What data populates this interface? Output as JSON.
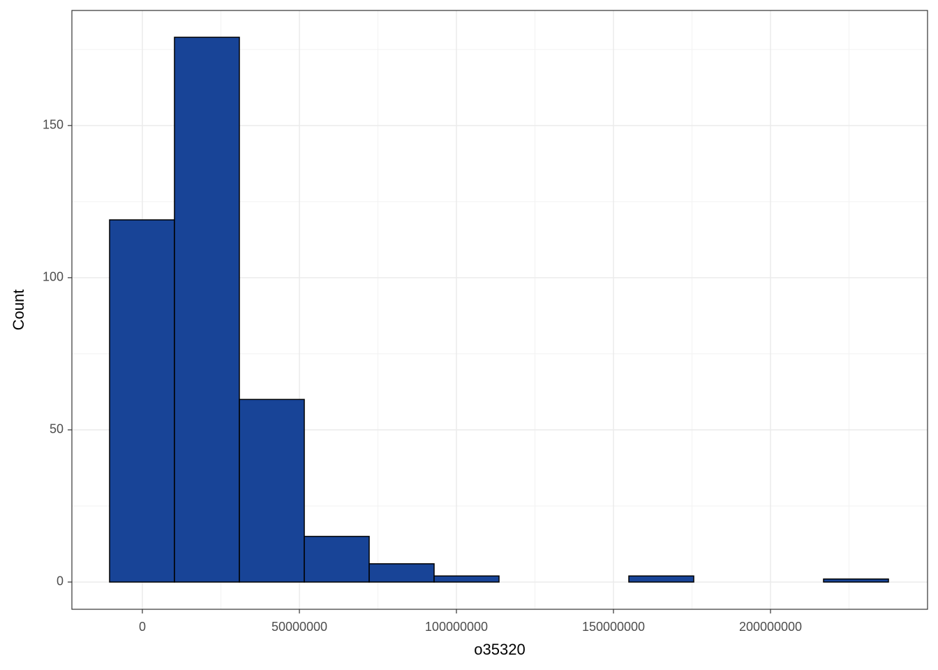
{
  "chart_data": {
    "type": "histogram",
    "x_label": "o35320",
    "y_label": "Count",
    "bins": [
      -10440000,
      10220000,
      30890000,
      51560000,
      72220000,
      92890000,
      113560000,
      134220000,
      154890000,
      175560000,
      196220000,
      216890000,
      237560000
    ],
    "counts": [
      119,
      179,
      60,
      15,
      6,
      2,
      0,
      0,
      2,
      0,
      0,
      1
    ],
    "color": "#184497",
    "xlim": [
      -22440000,
      250000000
    ],
    "xticks": [
      0,
      50000000,
      100000000,
      150000000,
      200000000
    ],
    "ylim": [
      -8.95,
      187.8
    ],
    "yticks": [
      0,
      50,
      100,
      150
    ],
    "grid": true
  }
}
